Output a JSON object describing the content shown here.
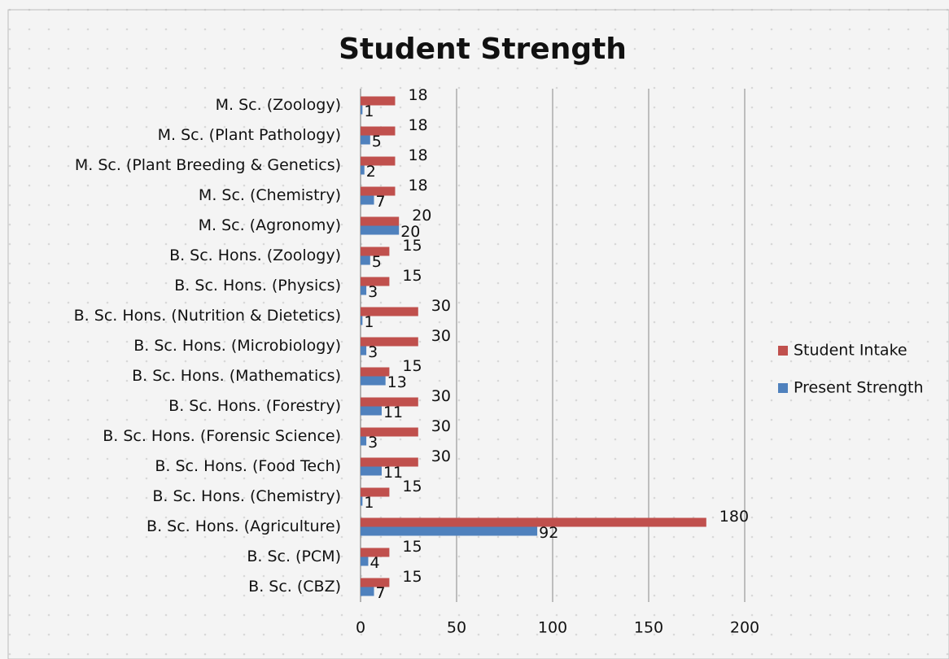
{
  "chart_data": {
    "type": "hbar",
    "title": "Student Strength",
    "categories": [
      "M. Sc. (Zoology)",
      "M. Sc. (Plant Pathology)",
      "M. Sc. (Plant Breeding & Genetics)",
      "M. Sc. (Chemistry)",
      "M. Sc. (Agronomy)",
      "B. Sc. Hons. (Zoology)",
      "B. Sc. Hons. (Physics)",
      "B. Sc. Hons. (Nutrition & Dietetics)",
      "B. Sc. Hons. (Microbiology)",
      "B. Sc. Hons. (Mathematics)",
      "B. Sc. Hons. (Forestry)",
      "B. Sc. Hons. (Forensic Science)",
      "B. Sc. Hons. (Food Tech)",
      "B. Sc. Hons. (Chemistry)",
      "B. Sc. Hons. (Agriculture)",
      "B. Sc. (PCM)",
      "B. Sc. (CBZ)"
    ],
    "series": [
      {
        "name": "Student Intake",
        "color": "#c0504d",
        "values": [
          18,
          18,
          18,
          18,
          20,
          15,
          15,
          30,
          30,
          15,
          30,
          30,
          30,
          15,
          180,
          15,
          15
        ]
      },
      {
        "name": "Present Strength",
        "color": "#4f81bd",
        "values": [
          1,
          5,
          2,
          7,
          20,
          5,
          3,
          1,
          3,
          13,
          11,
          3,
          11,
          1,
          92,
          4,
          7
        ]
      }
    ],
    "xlim": [
      0,
      200
    ],
    "xticks": [
      0,
      50,
      100,
      150,
      200
    ],
    "grid": true,
    "legend": "right"
  }
}
